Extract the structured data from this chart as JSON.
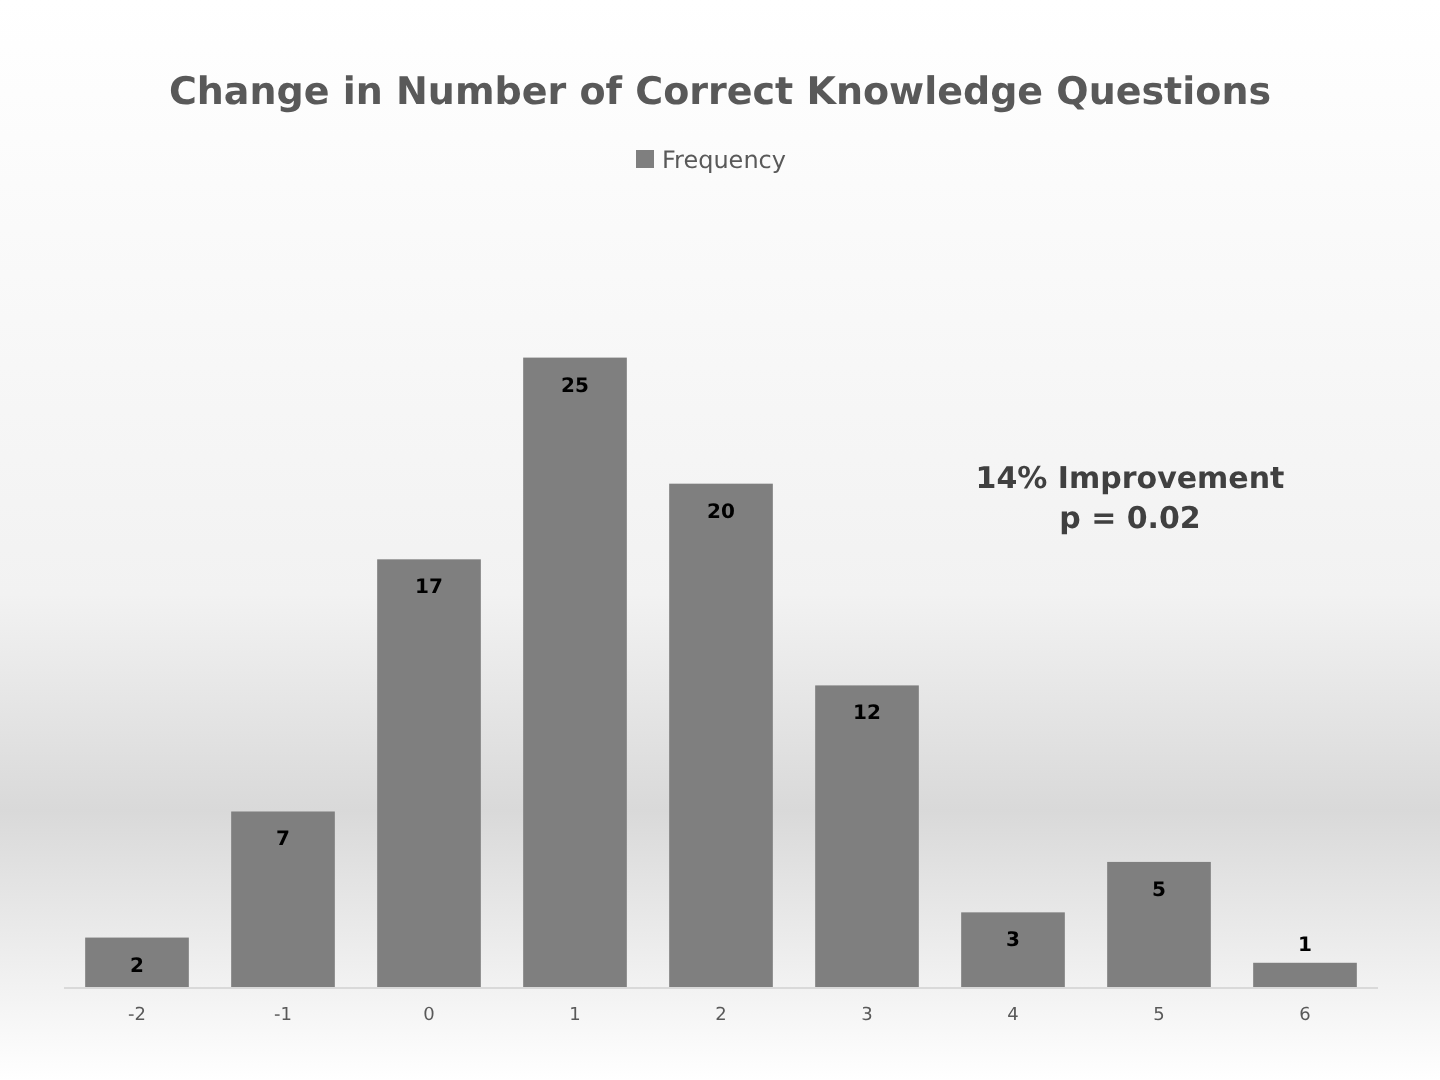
{
  "chart_data": {
    "type": "bar",
    "title": "Change in Number of Correct Knowledge Questions",
    "categories": [
      "-2",
      "-1",
      "0",
      "1",
      "2",
      "3",
      "4",
      "5",
      "6"
    ],
    "series": [
      {
        "name": "Frequency",
        "color": "#7f7f7f",
        "values": [
          2,
          7,
          17,
          25,
          20,
          12,
          3,
          5,
          1
        ]
      }
    ],
    "data_labels": true,
    "legend": "top",
    "grid": false,
    "annotations": [
      "14% Improvement",
      "p = 0.02"
    ]
  }
}
